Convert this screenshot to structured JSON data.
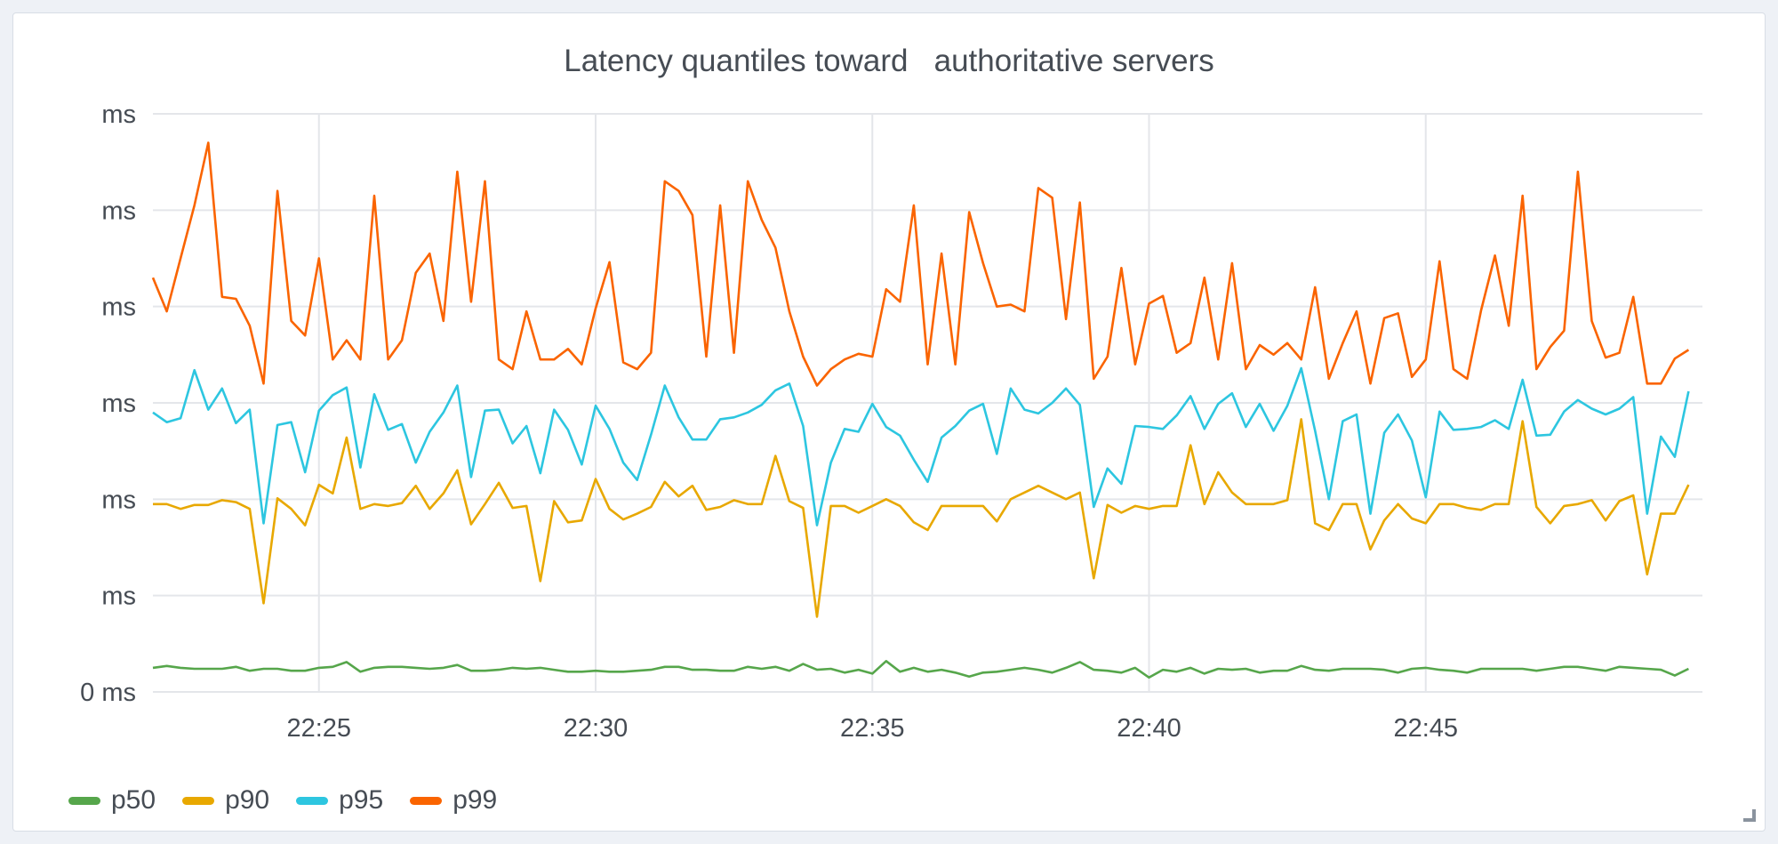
{
  "panel": {
    "title": "Latency quantiles toward   authoritative servers"
  },
  "chart_data": {
    "type": "line",
    "title": "Latency quantiles toward   authoritative servers",
    "y_tick_labels": [
      "0 ms",
      "ms",
      "ms",
      "ms",
      "ms",
      "ms",
      "ms"
    ],
    "y_units": "ms",
    "ylim": [
      0,
      6
    ],
    "x_range": [
      "22:22",
      "22:50"
    ],
    "x_ticks": [
      "22:25",
      "22:30",
      "22:35",
      "22:40",
      "22:45"
    ],
    "grid": true,
    "legend_position": "bottom-left",
    "x": [
      "22:22:00",
      "22:22:15",
      "22:22:30",
      "22:22:45",
      "22:23:00",
      "22:23:15",
      "22:23:30",
      "22:23:45",
      "22:24:00",
      "22:24:15",
      "22:24:30",
      "22:24:45",
      "22:25:00",
      "22:25:15",
      "22:25:30",
      "22:25:45",
      "22:26:00",
      "22:26:15",
      "22:26:30",
      "22:26:45",
      "22:27:00",
      "22:27:15",
      "22:27:30",
      "22:27:45",
      "22:28:00",
      "22:28:15",
      "22:28:30",
      "22:28:45",
      "22:29:00",
      "22:29:15",
      "22:29:30",
      "22:29:45",
      "22:30:00",
      "22:30:15",
      "22:30:30",
      "22:30:45",
      "22:31:00",
      "22:31:15",
      "22:31:30",
      "22:31:45",
      "22:32:00",
      "22:32:15",
      "22:32:30",
      "22:32:45",
      "22:33:00",
      "22:33:15",
      "22:33:30",
      "22:33:45",
      "22:34:00",
      "22:34:15",
      "22:34:30",
      "22:34:45",
      "22:35:00",
      "22:35:15",
      "22:35:30",
      "22:35:45",
      "22:36:00",
      "22:36:15",
      "22:36:30",
      "22:36:45",
      "22:37:00",
      "22:37:15",
      "22:37:30",
      "22:37:45",
      "22:38:00",
      "22:38:15",
      "22:38:30",
      "22:38:45",
      "22:39:00",
      "22:39:15",
      "22:39:30",
      "22:39:45",
      "22:40:00",
      "22:40:15",
      "22:40:30",
      "22:40:45",
      "22:41:00",
      "22:41:15",
      "22:41:30",
      "22:41:45",
      "22:42:00",
      "22:42:15",
      "22:42:30",
      "22:42:45",
      "22:43:00",
      "22:43:15",
      "22:43:30",
      "22:43:45",
      "22:44:00",
      "22:44:15",
      "22:44:30",
      "22:44:45",
      "22:45:00",
      "22:45:15",
      "22:45:30",
      "22:45:45",
      "22:46:00",
      "22:46:15",
      "22:46:30",
      "22:46:45",
      "22:47:00",
      "22:47:15",
      "22:47:30",
      "22:47:45",
      "22:48:00",
      "22:48:15",
      "22:48:30",
      "22:48:45",
      "22:49:00",
      "22:49:15",
      "22:49:30",
      "22:49:45"
    ],
    "series": [
      {
        "name": "p50",
        "color": "#56a64b",
        "values": [
          0.25,
          0.27,
          0.25,
          0.24,
          0.24,
          0.24,
          0.26,
          0.22,
          0.24,
          0.24,
          0.22,
          0.22,
          0.25,
          0.26,
          0.31,
          0.21,
          0.25,
          0.26,
          0.26,
          0.25,
          0.24,
          0.25,
          0.28,
          0.22,
          0.22,
          0.23,
          0.25,
          0.24,
          0.25,
          0.23,
          0.21,
          0.21,
          0.22,
          0.21,
          0.21,
          0.22,
          0.23,
          0.26,
          0.26,
          0.23,
          0.23,
          0.22,
          0.22,
          0.26,
          0.24,
          0.26,
          0.22,
          0.29,
          0.23,
          0.24,
          0.2,
          0.23,
          0.19,
          0.32,
          0.21,
          0.25,
          0.21,
          0.23,
          0.2,
          0.16,
          0.2,
          0.21,
          0.23,
          0.25,
          0.23,
          0.2,
          0.25,
          0.31,
          0.23,
          0.22,
          0.2,
          0.25,
          0.15,
          0.23,
          0.21,
          0.25,
          0.19,
          0.24,
          0.23,
          0.24,
          0.2,
          0.22,
          0.22,
          0.27,
          0.23,
          0.22,
          0.24,
          0.24,
          0.24,
          0.23,
          0.2,
          0.24,
          0.25,
          0.23,
          0.22,
          0.2,
          0.24,
          0.24,
          0.24,
          0.24,
          0.22,
          0.24,
          0.26,
          0.26,
          0.24,
          0.22,
          0.26,
          0.25,
          0.24,
          0.23,
          0.17,
          0.24
        ]
      },
      {
        "name": "p90",
        "color": "#e8a800",
        "values": [
          1.95,
          1.95,
          1.9,
          1.94,
          1.94,
          1.99,
          1.97,
          1.9,
          0.92,
          2.01,
          1.9,
          1.73,
          2.15,
          2.06,
          2.64,
          1.9,
          1.95,
          1.93,
          1.96,
          2.14,
          1.9,
          2.06,
          2.3,
          1.74,
          1.95,
          2.17,
          1.91,
          1.93,
          1.15,
          1.98,
          1.76,
          1.78,
          2.21,
          1.9,
          1.79,
          1.85,
          1.92,
          2.18,
          2.03,
          2.14,
          1.89,
          1.92,
          1.99,
          1.95,
          1.95,
          2.45,
          1.98,
          1.91,
          0.78,
          1.93,
          1.93,
          1.86,
          1.93,
          2.0,
          1.93,
          1.76,
          1.68,
          1.93,
          1.93,
          1.93,
          1.93,
          1.77,
          2.0,
          2.07,
          2.14,
          2.07,
          2.0,
          2.07,
          1.18,
          1.94,
          1.86,
          1.93,
          1.9,
          1.93,
          1.93,
          2.56,
          1.95,
          2.28,
          2.07,
          1.95,
          1.95,
          1.95,
          1.99,
          2.83,
          1.75,
          1.68,
          1.95,
          1.95,
          1.48,
          1.78,
          1.95,
          1.8,
          1.75,
          1.95,
          1.95,
          1.91,
          1.89,
          1.95,
          1.95,
          2.81,
          1.92,
          1.75,
          1.93,
          1.95,
          1.99,
          1.78,
          1.98,
          2.04,
          1.22,
          1.85,
          1.85,
          2.15
        ]
      },
      {
        "name": "p95",
        "color": "#2dc6e0",
        "values": [
          2.9,
          2.8,
          2.84,
          3.34,
          2.93,
          3.15,
          2.79,
          2.93,
          1.75,
          2.77,
          2.8,
          2.28,
          2.92,
          3.08,
          3.16,
          2.33,
          3.09,
          2.72,
          2.78,
          2.38,
          2.7,
          2.9,
          3.18,
          2.23,
          2.92,
          2.93,
          2.58,
          2.76,
          2.27,
          2.93,
          2.72,
          2.36,
          2.97,
          2.73,
          2.38,
          2.2,
          2.67,
          3.18,
          2.85,
          2.62,
          2.62,
          2.83,
          2.85,
          2.9,
          2.98,
          3.13,
          3.2,
          2.76,
          1.73,
          2.38,
          2.73,
          2.7,
          2.99,
          2.75,
          2.66,
          2.41,
          2.18,
          2.64,
          2.76,
          2.92,
          2.99,
          2.47,
          3.15,
          2.93,
          2.89,
          3.0,
          3.15,
          2.98,
          1.92,
          2.32,
          2.16,
          2.76,
          2.75,
          2.73,
          2.87,
          3.07,
          2.73,
          2.99,
          3.1,
          2.75,
          2.99,
          2.71,
          2.97,
          3.36,
          2.71,
          2.0,
          2.81,
          2.88,
          1.85,
          2.69,
          2.88,
          2.61,
          2.02,
          2.91,
          2.72,
          2.73,
          2.75,
          2.82,
          2.73,
          3.24,
          2.66,
          2.67,
          2.91,
          3.03,
          2.94,
          2.88,
          2.94,
          3.06,
          1.85,
          2.65,
          2.44,
          3.12
        ]
      },
      {
        "name": "p99",
        "color": "#fa6400",
        "values": [
          4.3,
          3.95,
          4.5,
          5.05,
          5.7,
          4.1,
          4.08,
          3.8,
          3.2,
          5.2,
          3.85,
          3.7,
          4.5,
          3.45,
          3.65,
          3.45,
          5.15,
          3.45,
          3.65,
          4.35,
          4.55,
          3.85,
          5.4,
          4.05,
          5.3,
          3.45,
          3.35,
          3.95,
          3.45,
          3.45,
          3.56,
          3.4,
          3.98,
          4.46,
          3.42,
          3.35,
          3.52,
          5.3,
          5.2,
          4.95,
          3.48,
          5.05,
          3.52,
          5.3,
          4.9,
          4.61,
          3.95,
          3.48,
          3.18,
          3.35,
          3.45,
          3.51,
          3.48,
          4.18,
          4.05,
          5.05,
          3.4,
          4.55,
          3.4,
          4.98,
          4.45,
          4.0,
          4.02,
          3.95,
          5.23,
          5.13,
          3.87,
          5.08,
          3.25,
          3.48,
          4.4,
          3.4,
          4.03,
          4.11,
          3.52,
          3.62,
          4.3,
          3.45,
          4.45,
          3.35,
          3.6,
          3.5,
          3.62,
          3.45,
          4.2,
          3.25,
          3.62,
          3.95,
          3.2,
          3.88,
          3.93,
          3.27,
          3.45,
          4.47,
          3.35,
          3.25,
          3.96,
          4.53,
          3.8,
          5.15,
          3.35,
          3.58,
          3.75,
          5.4,
          3.85,
          3.47,
          3.52,
          4.1,
          3.2,
          3.2,
          3.46,
          3.55
        ]
      }
    ]
  }
}
